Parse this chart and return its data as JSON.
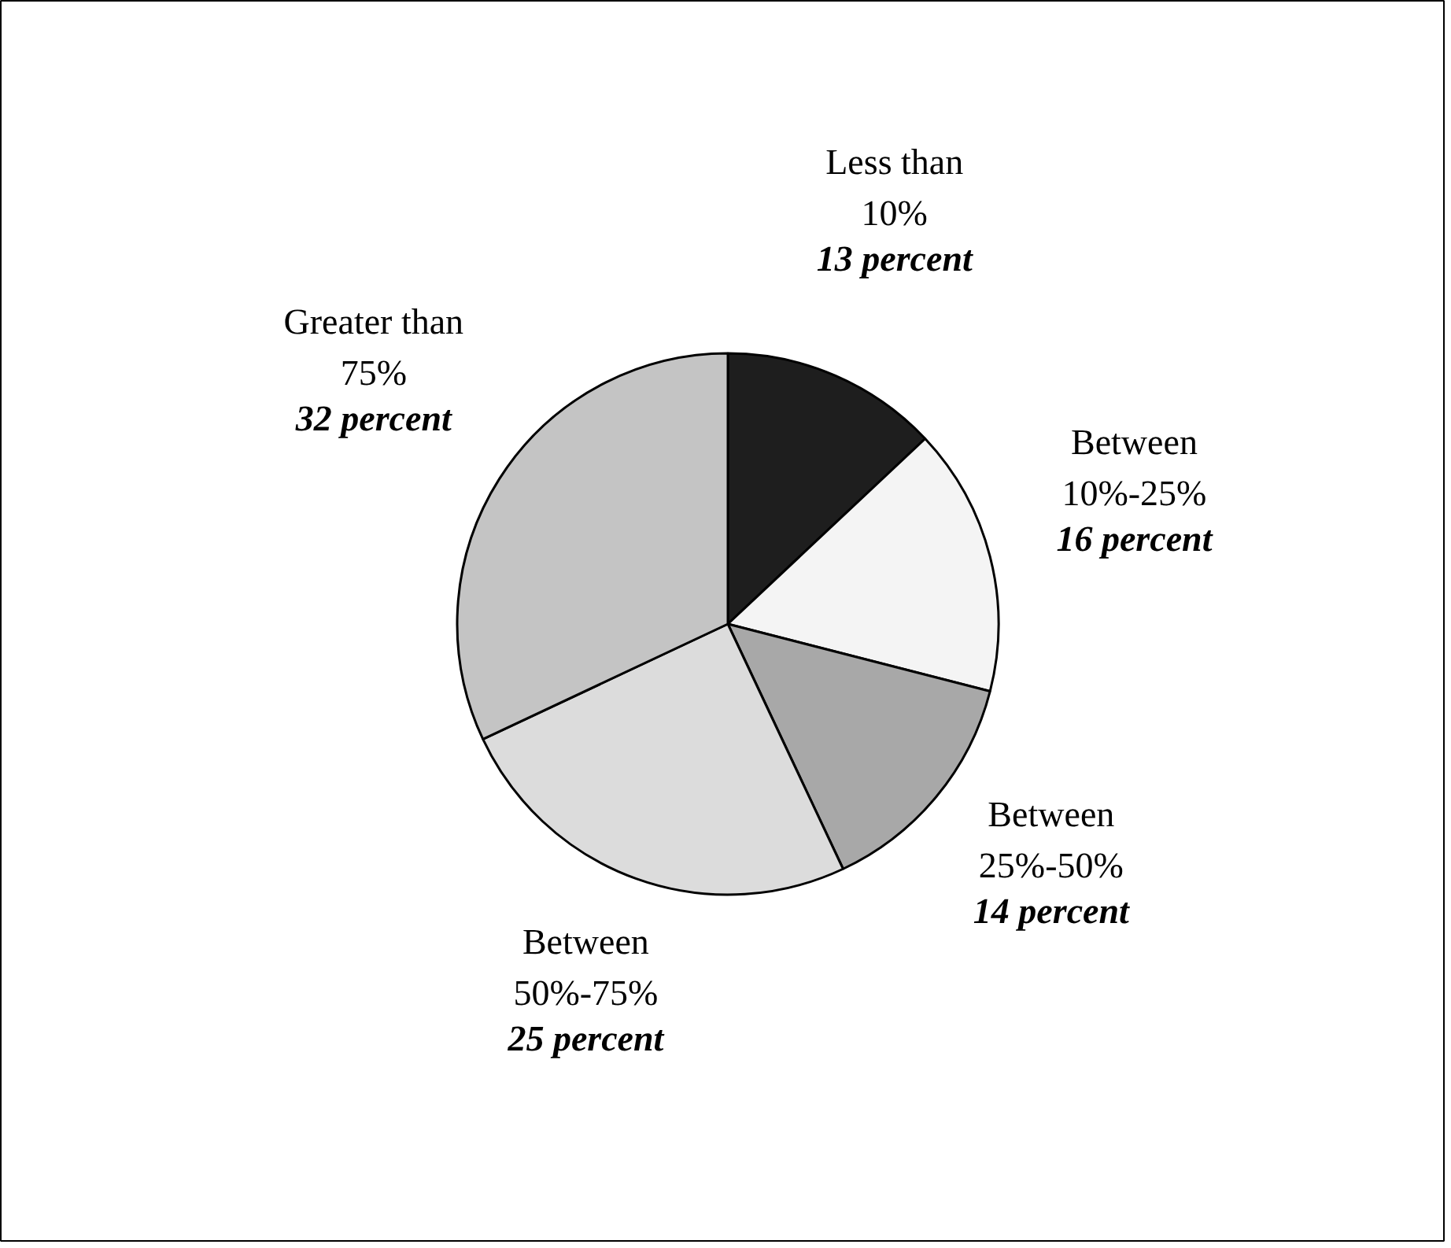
{
  "chart_data": {
    "type": "pie",
    "categories": [
      "Less than\n10%",
      "Between\n10%-25%",
      "Between\n25%-50%",
      "Between\n50%-75%",
      "Greater than\n75%"
    ],
    "values": [
      13,
      16,
      14,
      25,
      32
    ],
    "colors": [
      "#1e1e1e",
      "#f4f4f4",
      "#a8a8a8",
      "#dcdcdc",
      "#c4c4c4"
    ],
    "value_labels": [
      "13 percent",
      "16 percent",
      "14 percent",
      "25 percent",
      "32 percent"
    ]
  }
}
